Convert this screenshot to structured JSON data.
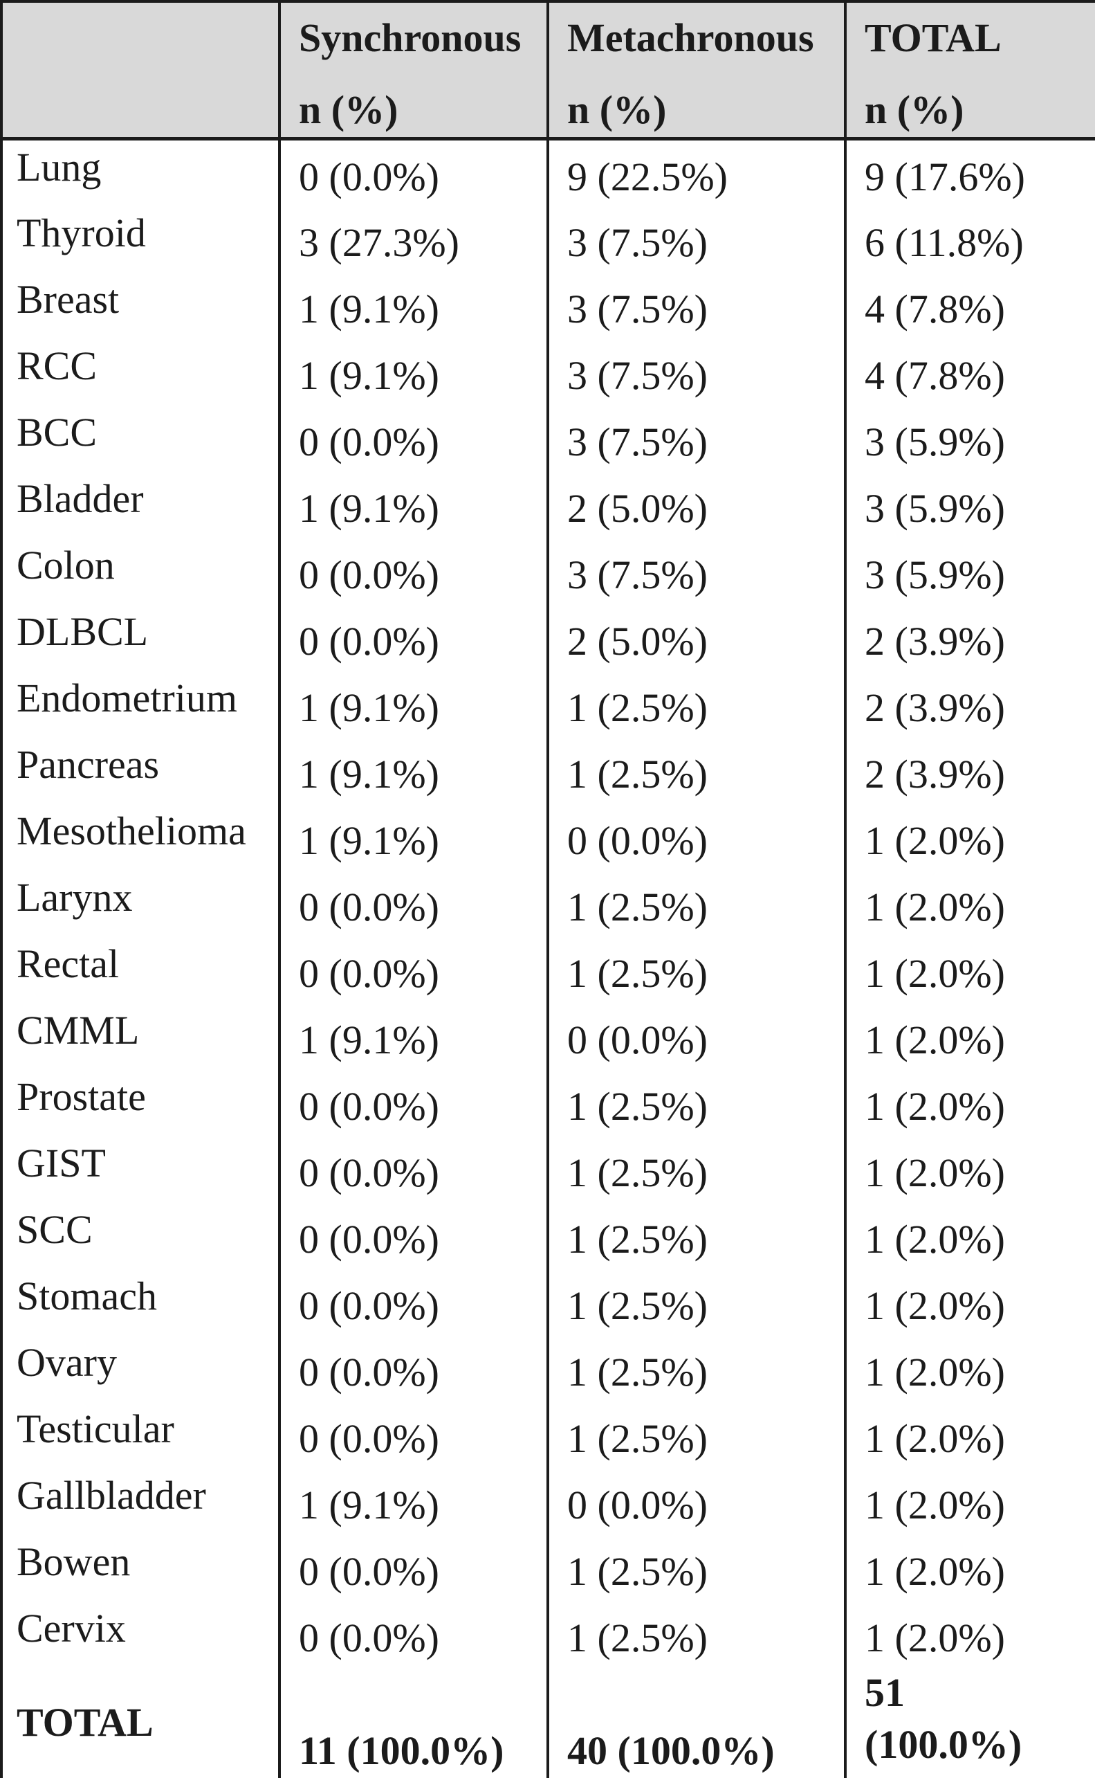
{
  "table": {
    "header": {
      "corner": "",
      "synchronous": {
        "title": "Synchronous",
        "subtitle": "n (%)"
      },
      "metachronous": {
        "title": "Metachronous",
        "subtitle": "n (%)"
      },
      "total": {
        "title": "TOTAL",
        "subtitle": "n (%)"
      }
    },
    "rows": [
      {
        "label": "Lung",
        "synchronous": "0 (0.0%)",
        "metachronous": "9 (22.5%)",
        "total": "9 (17.6%)"
      },
      {
        "label": "Thyroid",
        "synchronous": "3 (27.3%)",
        "metachronous": "3 (7.5%)",
        "total": "6 (11.8%)"
      },
      {
        "label": "Breast",
        "synchronous": "1 (9.1%)",
        "metachronous": "3 (7.5%)",
        "total": "4 (7.8%)"
      },
      {
        "label": "RCC",
        "synchronous": "1 (9.1%)",
        "metachronous": "3 (7.5%)",
        "total": "4 (7.8%)"
      },
      {
        "label": "BCC",
        "synchronous": "0 (0.0%)",
        "metachronous": "3 (7.5%)",
        "total": "3 (5.9%)"
      },
      {
        "label": "Bladder",
        "synchronous": "1 (9.1%)",
        "metachronous": "2 (5.0%)",
        "total": "3 (5.9%)"
      },
      {
        "label": "Colon",
        "synchronous": "0 (0.0%)",
        "metachronous": "3 (7.5%)",
        "total": "3 (5.9%)"
      },
      {
        "label": "DLBCL",
        "synchronous": "0 (0.0%)",
        "metachronous": "2 (5.0%)",
        "total": "2 (3.9%)"
      },
      {
        "label": "Endometrium",
        "synchronous": "1 (9.1%)",
        "metachronous": "1 (2.5%)",
        "total": "2 (3.9%)"
      },
      {
        "label": "Pancreas",
        "synchronous": "1 (9.1%)",
        "metachronous": "1 (2.5%)",
        "total": "2 (3.9%)"
      },
      {
        "label": "Mesothelioma",
        "synchronous": "1 (9.1%)",
        "metachronous": "0 (0.0%)",
        "total": "1 (2.0%)"
      },
      {
        "label": "Larynx",
        "synchronous": "0 (0.0%)",
        "metachronous": "1 (2.5%)",
        "total": "1 (2.0%)"
      },
      {
        "label": "Rectal",
        "synchronous": "0 (0.0%)",
        "metachronous": "1 (2.5%)",
        "total": "1 (2.0%)"
      },
      {
        "label": "CMML",
        "synchronous": "1 (9.1%)",
        "metachronous": "0 (0.0%)",
        "total": "1 (2.0%)"
      },
      {
        "label": "Prostate",
        "synchronous": "0 (0.0%)",
        "metachronous": "1 (2.5%)",
        "total": "1 (2.0%)"
      },
      {
        "label": "GIST",
        "synchronous": "0 (0.0%)",
        "metachronous": "1 (2.5%)",
        "total": "1 (2.0%)"
      },
      {
        "label": "SCC",
        "synchronous": "0 (0.0%)",
        "metachronous": "1 (2.5%)",
        "total": "1 (2.0%)"
      },
      {
        "label": "Stomach",
        "synchronous": "0 (0.0%)",
        "metachronous": "1 (2.5%)",
        "total": "1 (2.0%)"
      },
      {
        "label": "Ovary",
        "synchronous": "0 (0.0%)",
        "metachronous": "1 (2.5%)",
        "total": "1 (2.0%)"
      },
      {
        "label": "Testicular",
        "synchronous": "0 (0.0%)",
        "metachronous": "1 (2.5%)",
        "total": "1 (2.0%)"
      },
      {
        "label": "Gallbladder",
        "synchronous": "1 (9.1%)",
        "metachronous": "0 (0.0%)",
        "total": "1 (2.0%)"
      },
      {
        "label": "Bowen",
        "synchronous": "0 (0.0%)",
        "metachronous": "1 (2.5%)",
        "total": "1 (2.0%)"
      },
      {
        "label": "Cervix",
        "synchronous": "0 (0.0%)",
        "metachronous": "1 (2.5%)",
        "total": "1 (2.0%)"
      }
    ],
    "total_row": {
      "label": "TOTAL",
      "synchronous": "11 (100.0%)",
      "metachronous": "40 (100.0%)",
      "total": "51 (100.0%)"
    }
  },
  "colors": {
    "header_bg": "#d9d9d9",
    "border": "#1b1b1b",
    "text": "#1b1b1b",
    "body_bg": "#ffffff"
  }
}
